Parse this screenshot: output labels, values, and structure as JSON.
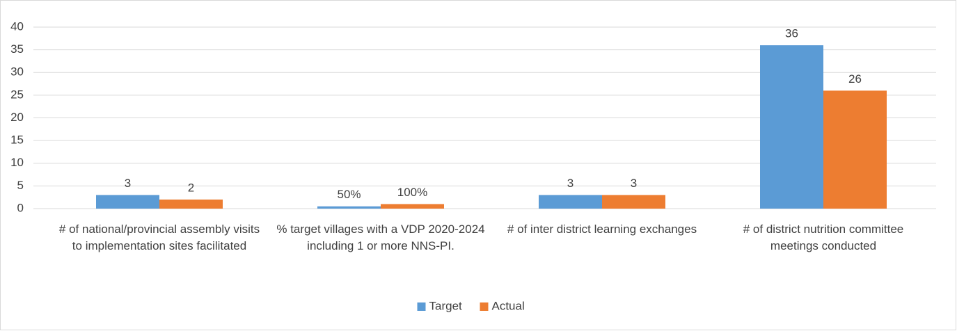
{
  "chart_data": {
    "type": "bar",
    "categories": [
      "# of national/provincial assembly visits to implementation sites facilitated",
      "% target villages with a VDP 2020-2024 including 1 or more NNS-PI.",
      "# of inter district learning exchanges",
      "# of district nutrition committee meetings conducted"
    ],
    "series": [
      {
        "name": "Target",
        "color": "#5b9bd5",
        "values": [
          3,
          0.5,
          3,
          36
        ],
        "value_labels": [
          "3",
          "50%",
          "3",
          "36"
        ]
      },
      {
        "name": "Actual",
        "color": "#ed7d31",
        "values": [
          2,
          1,
          3,
          26
        ],
        "value_labels": [
          "2",
          "100%",
          "3",
          "26"
        ]
      }
    ],
    "ylim": [
      0,
      40
    ],
    "yticks": [
      0,
      5,
      10,
      15,
      20,
      25,
      30,
      35,
      40
    ],
    "grid": true,
    "legend": "bottom"
  }
}
